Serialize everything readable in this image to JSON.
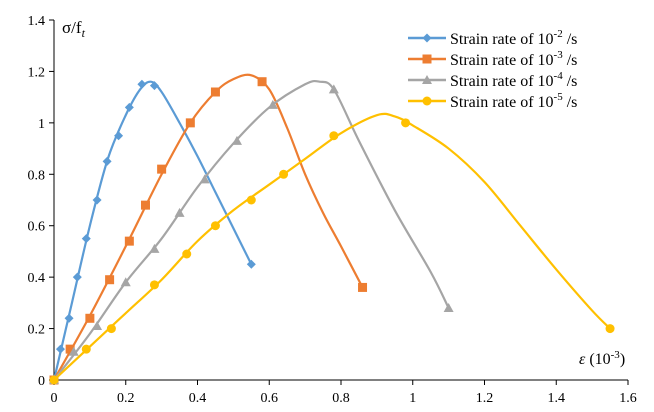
{
  "chart_data": {
    "type": "line",
    "title": "",
    "ylabel": "σ/f",
    "ylabel_sub": "t",
    "xlabel": "ε",
    "xlabel_unit": "(10",
    "xlabel_unit_exp": "-3",
    "xlabel_unit_close": ")",
    "xlim": [
      0,
      1.6
    ],
    "ylim": [
      0,
      1.4
    ],
    "x_ticks": [
      "0",
      "0.2",
      "0.4",
      "0.6",
      "0.8",
      "1",
      "1.2",
      "1.4",
      "1.6"
    ],
    "y_ticks": [
      "0",
      "0.2",
      "0.4",
      "0.6",
      "0.8",
      "1",
      "1.2",
      "1.4"
    ],
    "grid": false,
    "legend_position": "top-right",
    "series": [
      {
        "name_prefix": "Strain rate of 10",
        "name_exp": "-2",
        "name_suffix": " /s",
        "color": "#5B9BD5",
        "marker": "diamond",
        "points": [
          [
            0,
            0
          ],
          [
            0.018,
            0.12
          ],
          [
            0.042,
            0.24
          ],
          [
            0.065,
            0.4
          ],
          [
            0.09,
            0.55
          ],
          [
            0.12,
            0.7
          ],
          [
            0.148,
            0.85
          ],
          [
            0.18,
            0.95
          ],
          [
            0.21,
            1.06
          ],
          [
            0.245,
            1.15
          ],
          [
            0.28,
            1.145
          ],
          [
            0.55,
            0.45
          ]
        ],
        "curve": [
          [
            0,
            0
          ],
          [
            0.05,
            0.3
          ],
          [
            0.1,
            0.6
          ],
          [
            0.15,
            0.86
          ],
          [
            0.2,
            1.03
          ],
          [
            0.24,
            1.13
          ],
          [
            0.27,
            1.16
          ],
          [
            0.3,
            1.12
          ],
          [
            0.35,
            1.0
          ],
          [
            0.4,
            0.87
          ],
          [
            0.45,
            0.73
          ],
          [
            0.5,
            0.59
          ],
          [
            0.55,
            0.45
          ]
        ]
      },
      {
        "name_prefix": "Strain rate of 10",
        "name_exp": "-3",
        "name_suffix": " /s",
        "color": "#ED7D31",
        "marker": "square",
        "points": [
          [
            0,
            0
          ],
          [
            0.045,
            0.12
          ],
          [
            0.1,
            0.24
          ],
          [
            0.155,
            0.39
          ],
          [
            0.21,
            0.54
          ],
          [
            0.255,
            0.68
          ],
          [
            0.3,
            0.82
          ],
          [
            0.38,
            1.0
          ],
          [
            0.45,
            1.12
          ],
          [
            0.58,
            1.16
          ],
          [
            0.86,
            0.36
          ]
        ],
        "curve": [
          [
            0,
            0
          ],
          [
            0.1,
            0.25
          ],
          [
            0.2,
            0.52
          ],
          [
            0.3,
            0.8
          ],
          [
            0.38,
            1.0
          ],
          [
            0.45,
            1.12
          ],
          [
            0.5,
            1.17
          ],
          [
            0.55,
            1.185
          ],
          [
            0.6,
            1.13
          ],
          [
            0.65,
            0.98
          ],
          [
            0.7,
            0.8
          ],
          [
            0.75,
            0.65
          ],
          [
            0.8,
            0.52
          ],
          [
            0.86,
            0.36
          ]
        ]
      },
      {
        "name_prefix": "Strain rate of 10",
        "name_exp": "-4",
        "name_suffix": " /s",
        "color": "#A5A5A5",
        "marker": "triangle",
        "points": [
          [
            0,
            0
          ],
          [
            0.055,
            0.11
          ],
          [
            0.12,
            0.21
          ],
          [
            0.2,
            0.38
          ],
          [
            0.28,
            0.51
          ],
          [
            0.35,
            0.65
          ],
          [
            0.42,
            0.78
          ],
          [
            0.51,
            0.93
          ],
          [
            0.61,
            1.07
          ],
          [
            0.78,
            1.13
          ],
          [
            1.1,
            0.28
          ]
        ],
        "curve": [
          [
            0,
            0
          ],
          [
            0.1,
            0.18
          ],
          [
            0.2,
            0.38
          ],
          [
            0.3,
            0.55
          ],
          [
            0.4,
            0.75
          ],
          [
            0.5,
            0.92
          ],
          [
            0.6,
            1.06
          ],
          [
            0.7,
            1.15
          ],
          [
            0.74,
            1.16
          ],
          [
            0.78,
            1.13
          ],
          [
            0.85,
            0.93
          ],
          [
            0.95,
            0.66
          ],
          [
            1.05,
            0.42
          ],
          [
            1.1,
            0.28
          ]
        ]
      },
      {
        "name_prefix": "Strain rate of 10",
        "name_exp": "-5",
        "name_suffix": " /s",
        "color": "#FFC000",
        "marker": "circle",
        "points": [
          [
            0,
            0
          ],
          [
            0.09,
            0.12
          ],
          [
            0.16,
            0.2
          ],
          [
            0.28,
            0.37
          ],
          [
            0.37,
            0.49
          ],
          [
            0.45,
            0.6
          ],
          [
            0.55,
            0.7
          ],
          [
            0.64,
            0.8
          ],
          [
            0.78,
            0.95
          ],
          [
            0.98,
            1.0
          ],
          [
            1.55,
            0.2
          ]
        ],
        "curve": [
          [
            0,
            0
          ],
          [
            0.1,
            0.13
          ],
          [
            0.2,
            0.26
          ],
          [
            0.3,
            0.39
          ],
          [
            0.4,
            0.54
          ],
          [
            0.5,
            0.66
          ],
          [
            0.6,
            0.76
          ],
          [
            0.7,
            0.86
          ],
          [
            0.8,
            0.96
          ],
          [
            0.9,
            1.03
          ],
          [
            0.95,
            1.025
          ],
          [
            1.0,
            0.99
          ],
          [
            1.1,
            0.9
          ],
          [
            1.2,
            0.77
          ],
          [
            1.3,
            0.6
          ],
          [
            1.4,
            0.43
          ],
          [
            1.5,
            0.27
          ],
          [
            1.55,
            0.2
          ]
        ]
      }
    ]
  }
}
